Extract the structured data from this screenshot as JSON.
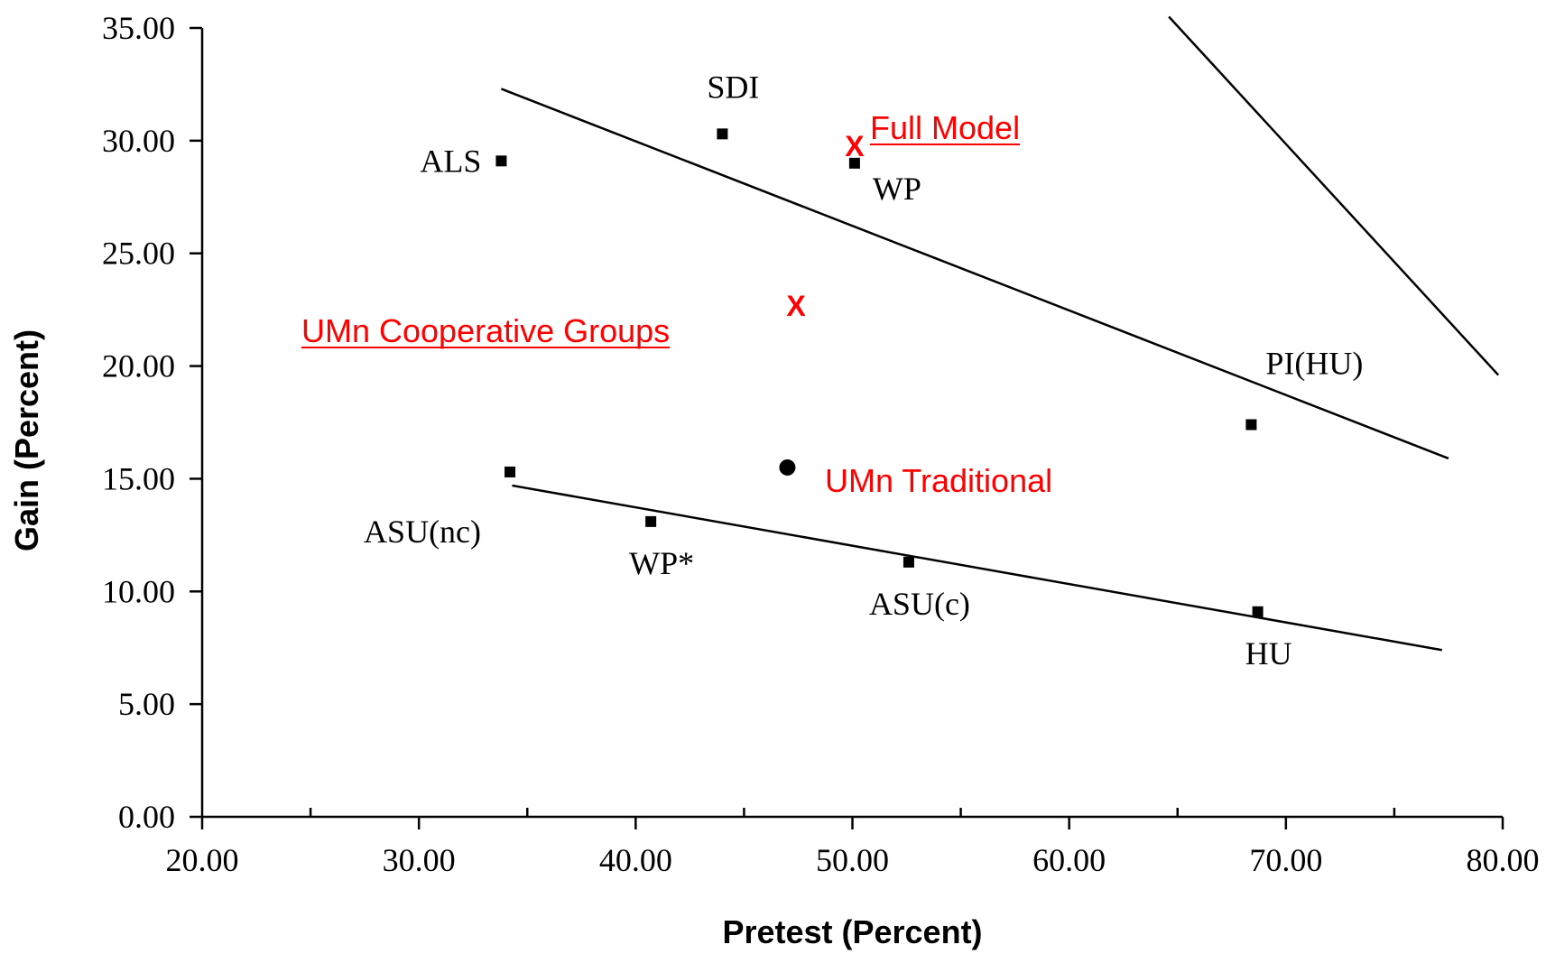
{
  "colors": {
    "axis": "#000000",
    "annotation": "#ff0000"
  },
  "chart_data": {
    "type": "scatter",
    "title": "",
    "xlabel": "Pretest (Percent)",
    "ylabel": "Gain (Percent)",
    "xlim": [
      20,
      80
    ],
    "ylim": [
      0,
      35
    ],
    "x_ticks": [
      {
        "value": 20,
        "label": "20.00"
      },
      {
        "value": 30,
        "label": "30.00"
      },
      {
        "value": 40,
        "label": "40.00"
      },
      {
        "value": 50,
        "label": "50.00"
      },
      {
        "value": 60,
        "label": "60.00"
      },
      {
        "value": 70,
        "label": "70.00"
      },
      {
        "value": 80,
        "label": "80.00"
      }
    ],
    "y_ticks": [
      {
        "value": 0,
        "label": "0.00"
      },
      {
        "value": 5,
        "label": "5.00"
      },
      {
        "value": 10,
        "label": "10.00"
      },
      {
        "value": 15,
        "label": "15.00"
      },
      {
        "value": 20,
        "label": "20.00"
      },
      {
        "value": 25,
        "label": "25.00"
      },
      {
        "value": 30,
        "label": "30.00"
      },
      {
        "value": 35,
        "label": "35.00"
      }
    ],
    "grid": false,
    "points": [
      {
        "label": "ALS",
        "x": 33.8,
        "y": 29.1,
        "label_pos": "left"
      },
      {
        "label": "SDI",
        "x": 44.0,
        "y": 30.3,
        "label_pos": "above"
      },
      {
        "label": "WP",
        "x": 50.1,
        "y": 29.0,
        "label_pos": "below-right"
      },
      {
        "label": "PI(HU)",
        "x": 68.4,
        "y": 17.4,
        "label_pos": "above-right"
      },
      {
        "label": "ASU(nc)",
        "x": 34.2,
        "y": 15.3,
        "label_pos": "below-left"
      },
      {
        "label": "WP*",
        "x": 40.7,
        "y": 13.1,
        "label_pos": "below"
      },
      {
        "label": "ASU(c)",
        "x": 52.6,
        "y": 11.3,
        "label_pos": "below"
      },
      {
        "label": "HU",
        "x": 68.7,
        "y": 9.1,
        "label_pos": "below"
      }
    ],
    "trend_lines": [
      {
        "x": [
          33.8,
          77.5
        ],
        "y": [
          32.3,
          15.9
        ]
      },
      {
        "x": [
          34.3,
          77.2
        ],
        "y": [
          14.7,
          7.4
        ]
      },
      {
        "x": [
          64.6,
          79.8
        ],
        "y": [
          35.5,
          19.6
        ]
      }
    ],
    "highlights": [
      {
        "label": "Full Model",
        "marker": "x",
        "marker_text": "X",
        "x": 50.1,
        "y": 29.8
      },
      {
        "label": "UMn Cooperative Groups",
        "marker": "x",
        "marker_text": "X",
        "x": 47.4,
        "y": 22.7
      },
      {
        "label": "UMn Traditional",
        "marker": "circle",
        "x": 47.0,
        "y": 15.5
      }
    ]
  }
}
